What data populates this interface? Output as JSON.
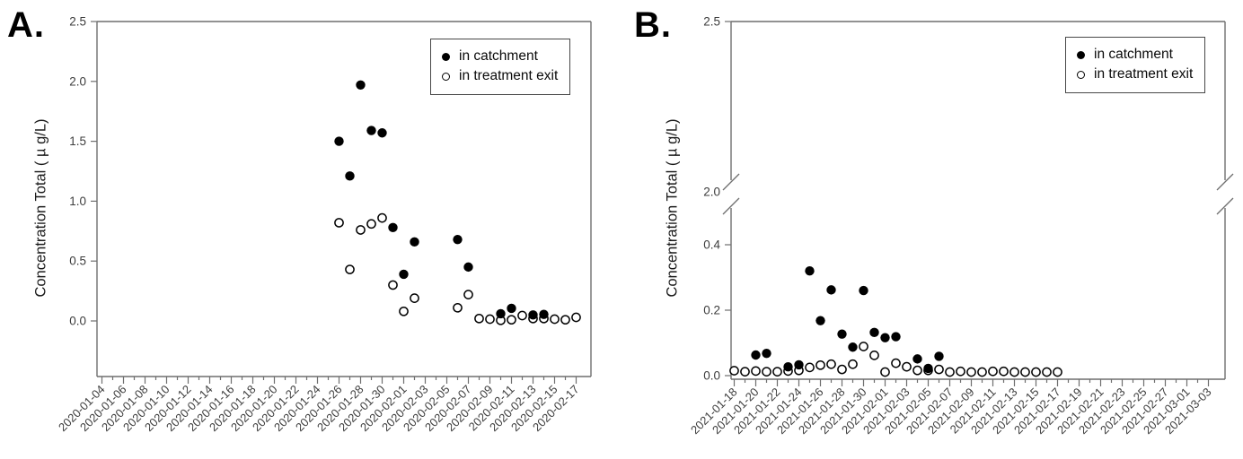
{
  "chart_data": [
    {
      "panel_label": "A.",
      "type": "scatter",
      "ylabel": "Concentration Total ( µ g/L)",
      "ylim": [
        -0.47,
        2.5
      ],
      "ytick_values": [
        0,
        0.5,
        1.0,
        1.5,
        2.0,
        2.5
      ],
      "ytick_labels": [
        "0.0",
        "0.5",
        "1.0",
        "1.5",
        "2.0",
        "2.5"
      ],
      "x_axis_start": "2020-01-04",
      "x_axis_end": "2020-02-17",
      "x_major_tick_interval_days": 2,
      "x_minor_ticks_daily": true,
      "x_tick_labels": [
        "2020-01-04",
        "2020-01-06",
        "2020-01-08",
        "2020-01-10",
        "2020-01-12",
        "2020-01-14",
        "2020-01-16",
        "2020-01-18",
        "2020-01-20",
        "2020-01-22",
        "2020-01-24",
        "2020-01-26",
        "2020-01-28",
        "2020-01-30",
        "2020-02-01",
        "2020-02-03",
        "2020-02-05",
        "2020-02-07",
        "2020-02-09",
        "2020-02-11",
        "2020-02-13",
        "2020-02-15",
        "2020-02-17"
      ],
      "grid": false,
      "legend": [
        "in catchment",
        "in treatment exit"
      ],
      "legend_position": "top-right",
      "series": [
        {
          "name": "in catchment",
          "marker": "filled-circle",
          "points": [
            [
              "2020-01-26",
              1.5
            ],
            [
              "2020-01-27",
              1.21
            ],
            [
              "2020-01-28",
              1.97
            ],
            [
              "2020-01-29",
              1.59
            ],
            [
              "2020-01-30",
              1.57
            ],
            [
              "2020-01-31",
              0.78
            ],
            [
              "2020-02-01",
              0.39
            ],
            [
              "2020-02-02",
              0.66
            ],
            [
              "2020-02-06",
              0.68
            ],
            [
              "2020-02-07",
              0.45
            ],
            [
              "2020-02-10",
              0.06
            ],
            [
              "2020-02-11",
              0.105
            ],
            [
              "2020-02-13",
              0.05
            ],
            [
              "2020-02-14",
              0.055
            ]
          ]
        },
        {
          "name": "in treatment exit",
          "marker": "open-circle",
          "points": [
            [
              "2020-01-26",
              0.82
            ],
            [
              "2020-01-27",
              0.43
            ],
            [
              "2020-01-28",
              0.76
            ],
            [
              "2020-01-29",
              0.81
            ],
            [
              "2020-01-30",
              0.86
            ],
            [
              "2020-01-31",
              0.3
            ],
            [
              "2020-02-01",
              0.08
            ],
            [
              "2020-02-02",
              0.19
            ],
            [
              "2020-02-06",
              0.11
            ],
            [
              "2020-02-07",
              0.22
            ],
            [
              "2020-02-08",
              0.02
            ],
            [
              "2020-02-09",
              0.015
            ],
            [
              "2020-02-10",
              0.005
            ],
            [
              "2020-02-11",
              0.01
            ],
            [
              "2020-02-12",
              0.045
            ],
            [
              "2020-02-13",
              0.02
            ],
            [
              "2020-02-14",
              0.02
            ],
            [
              "2020-02-15",
              0.015
            ],
            [
              "2020-02-16",
              0.01
            ],
            [
              "2020-02-17",
              0.03
            ]
          ]
        }
      ]
    },
    {
      "panel_label": "B.",
      "type": "scatter",
      "ylabel": "Concentration Total ( µ g/L)",
      "ylim": [
        0,
        2.5
      ],
      "y_axis_break": {
        "from": 0.45,
        "to": 2.0
      },
      "ytick_values": [
        0,
        0.2,
        0.4,
        2.0,
        2.5
      ],
      "ytick_labels": [
        "0.0",
        "0.2",
        "0.4",
        "2.0",
        "2.5"
      ],
      "x_axis_start": "2021-01-18",
      "x_axis_end": "2021-03-03",
      "x_major_tick_interval_days": 2,
      "x_minor_ticks_daily": true,
      "x_tick_labels": [
        "2021-01-18",
        "2021-01-20",
        "2021-01-22",
        "2021-01-24",
        "2021-01-26",
        "2021-01-28",
        "2021-01-30",
        "2021-02-01",
        "2021-02-03",
        "2021-02-05",
        "2021-02-07",
        "2021-02-09",
        "2021-02-11",
        "2021-02-13",
        "2021-02-15",
        "2021-02-17",
        "2021-02-19",
        "2021-02-21",
        "2021-02-23",
        "2021-02-25",
        "2021-02-27",
        "2021-03-01",
        "2021-03-03"
      ],
      "grid": false,
      "legend": [
        "in catchment",
        "in treatment exit"
      ],
      "legend_position": "top-right",
      "series": [
        {
          "name": "in catchment",
          "marker": "filled-circle",
          "points": [
            [
              "2021-01-20",
              0.063
            ],
            [
              "2021-01-21",
              0.068
            ],
            [
              "2021-01-23",
              0.027
            ],
            [
              "2021-01-24",
              0.033
            ],
            [
              "2021-01-25",
              0.32
            ],
            [
              "2021-01-26",
              0.168
            ],
            [
              "2021-01-27",
              0.262
            ],
            [
              "2021-01-28",
              0.127
            ],
            [
              "2021-01-29",
              0.087
            ],
            [
              "2021-01-30",
              0.26
            ],
            [
              "2021-01-31",
              0.132
            ],
            [
              "2021-02-01",
              0.116
            ],
            [
              "2021-02-02",
              0.119
            ],
            [
              "2021-02-04",
              0.051
            ],
            [
              "2021-02-05",
              0.022
            ],
            [
              "2021-02-06",
              0.059
            ]
          ]
        },
        {
          "name": "in treatment exit",
          "marker": "open-circle",
          "points": [
            [
              "2021-01-18",
              0.015
            ],
            [
              "2021-01-19",
              0.012
            ],
            [
              "2021-01-20",
              0.014
            ],
            [
              "2021-01-21",
              0.012
            ],
            [
              "2021-01-22",
              0.012
            ],
            [
              "2021-01-23",
              0.014
            ],
            [
              "2021-01-24",
              0.016
            ],
            [
              "2021-01-25",
              0.025
            ],
            [
              "2021-01-26",
              0.032
            ],
            [
              "2021-01-27",
              0.035
            ],
            [
              "2021-01-28",
              0.019
            ],
            [
              "2021-01-29",
              0.035
            ],
            [
              "2021-01-30",
              0.089
            ],
            [
              "2021-01-31",
              0.062
            ],
            [
              "2021-02-01",
              0.011
            ],
            [
              "2021-02-02",
              0.038
            ],
            [
              "2021-02-03",
              0.027
            ],
            [
              "2021-02-04",
              0.016
            ],
            [
              "2021-02-05",
              0.016
            ],
            [
              "2021-02-06",
              0.019
            ],
            [
              "2021-02-07",
              0.011
            ],
            [
              "2021-02-08",
              0.013
            ],
            [
              "2021-02-09",
              0.011
            ],
            [
              "2021-02-10",
              0.011
            ],
            [
              "2021-02-11",
              0.013
            ],
            [
              "2021-02-12",
              0.013
            ],
            [
              "2021-02-13",
              0.011
            ],
            [
              "2021-02-14",
              0.011
            ],
            [
              "2021-02-15",
              0.011
            ],
            [
              "2021-02-16",
              0.011
            ],
            [
              "2021-02-17",
              0.011
            ]
          ]
        }
      ]
    }
  ]
}
